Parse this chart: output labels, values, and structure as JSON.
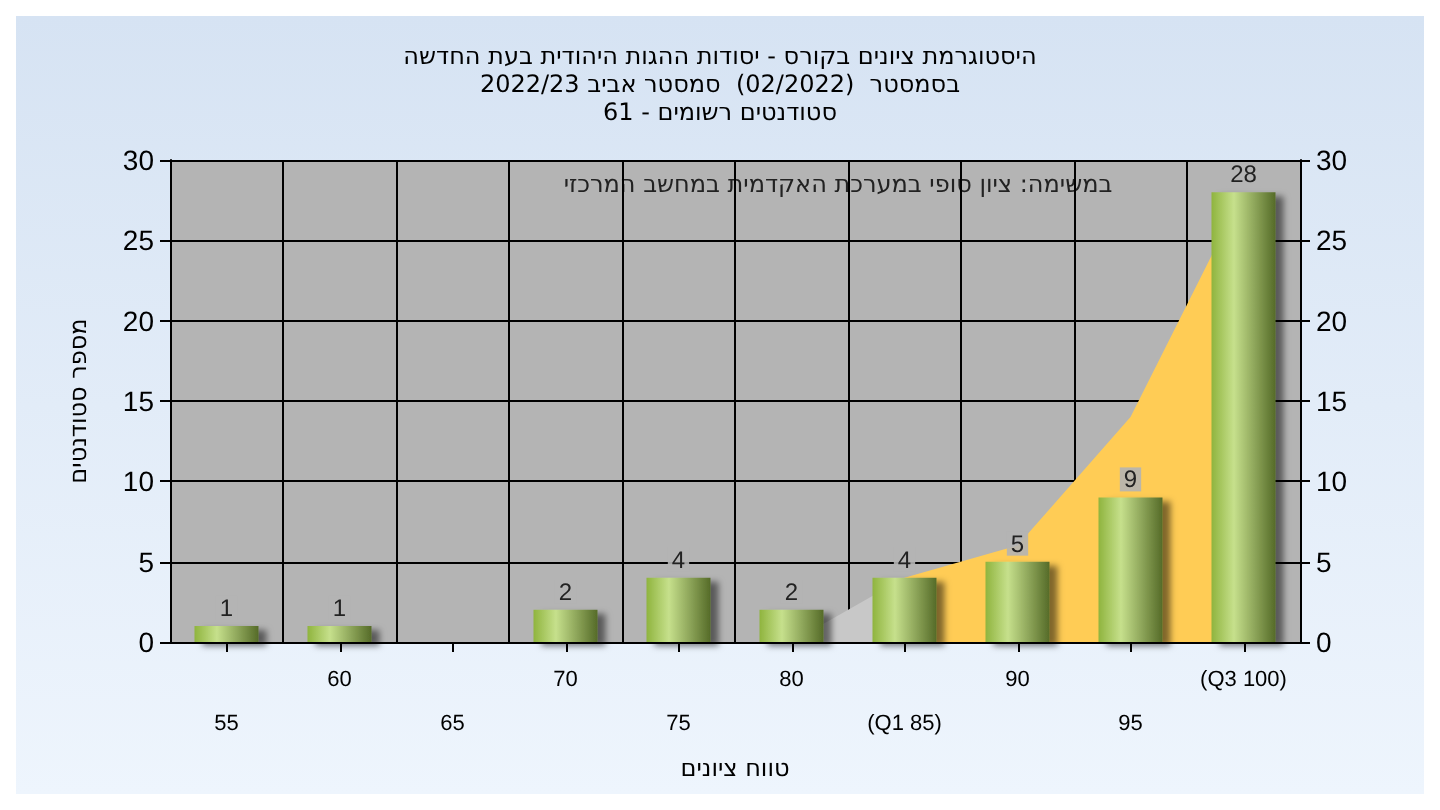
{
  "chart_data": {
    "type": "bar",
    "title": "היסטוגרמת ציונים בקורס - יסודות ההגות היהודית בעת החדשה",
    "subtitle": "בסמסטר  (02/2022)  סמסטר אביב 2022/23\nסטודנטים רשומים - 61",
    "xlabel": "טווח ציונים",
    "ylabel": "מספר סטודנטים",
    "annotations": [
      "במשימה: ציון סופי במערכת האקדמית במחשב המרכזי"
    ],
    "categories": [
      "55",
      "60",
      "65",
      "70",
      "75",
      "80",
      "(Q1 85)",
      "90",
      "95",
      "(Q3 100)"
    ],
    "series": [
      {
        "type": "area",
        "color": "#c8c8c8",
        "values": [
          null,
          null,
          null,
          null,
          null,
          0,
          4,
          null,
          null,
          null
        ]
      },
      {
        "type": "area",
        "color": "#ffcc55",
        "values": [
          null,
          null,
          null,
          null,
          null,
          null,
          4,
          6,
          14,
          28
        ]
      },
      {
        "color": "#8fb43e",
        "values": [
          1,
          1,
          0,
          2,
          4,
          2,
          4,
          5,
          9,
          28
        ],
        "value_labels": [
          "1",
          "1",
          null,
          "2",
          "4",
          "2",
          "4",
          "5",
          "9",
          "28"
        ]
      }
    ],
    "ylim": [
      0,
      30
    ],
    "yticks": [
      0,
      5,
      10,
      15,
      20,
      25,
      30
    ],
    "y2lim": [
      0,
      30
    ],
    "y2ticks": [
      0,
      5,
      10,
      15,
      20,
      25,
      30
    ],
    "grid": true
  }
}
